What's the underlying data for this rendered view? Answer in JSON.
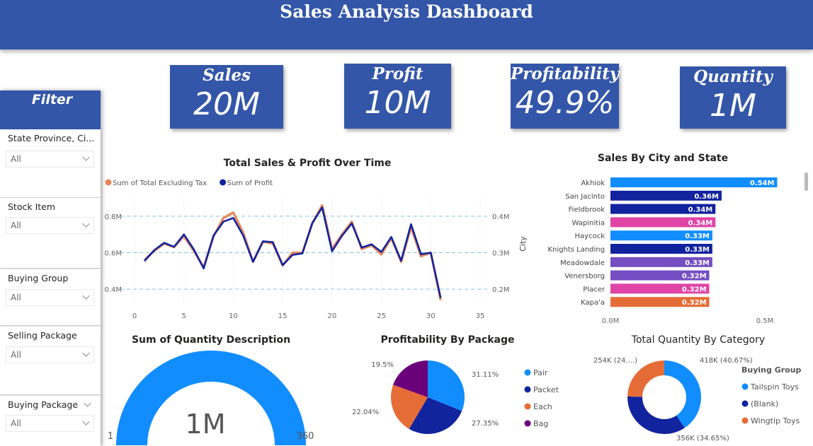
{
  "header": {
    "title": "Sales Analysis Dashboard"
  },
  "kpis": [
    {
      "title": "Sales",
      "value": "20M"
    },
    {
      "title": "Profit",
      "value": "10M"
    },
    {
      "title": "Profitability",
      "value": "49.9%"
    },
    {
      "title": "Quantity",
      "value": "1M"
    }
  ],
  "filter": {
    "title": "Filter",
    "slicers": [
      {
        "label": "State Province, Ci...",
        "value": "All"
      },
      {
        "label": "Stock Item",
        "value": "All"
      },
      {
        "label": "Buying Group",
        "value": "All"
      },
      {
        "label": "Selling Package",
        "value": "All"
      },
      {
        "label": "Buying Package",
        "value": "All"
      }
    ]
  },
  "colors": {
    "brand": "#3356a8",
    "light_blue": "#118dff",
    "dark_blue": "#12239e",
    "orange": "#e66c37",
    "purple": "#6b007b",
    "pink": "#e044a7",
    "violet": "#744ec2"
  },
  "chart_data": [
    {
      "type": "line",
      "title": "Total Sales & Profit Over Time",
      "legend_position": "top-left",
      "x": [
        1,
        2,
        3,
        4,
        5,
        6,
        7,
        8,
        9,
        10,
        11,
        12,
        13,
        14,
        15,
        16,
        17,
        18,
        19,
        20,
        21,
        22,
        23,
        24,
        25,
        26,
        27,
        28,
        29,
        30,
        31
      ],
      "series": [
        {
          "name": "Sum of Total Excluding Tax",
          "axis": "left",
          "color": "#e6875a",
          "values": [
            0.56,
            0.61,
            0.65,
            0.63,
            0.69,
            0.61,
            0.52,
            0.69,
            0.79,
            0.82,
            0.71,
            0.55,
            0.66,
            0.65,
            0.53,
            0.6,
            0.6,
            0.76,
            0.86,
            0.62,
            0.7,
            0.77,
            0.62,
            0.64,
            0.59,
            0.68,
            0.55,
            0.74,
            0.58,
            0.6,
            0.34
          ]
        },
        {
          "name": "Sum of Profit",
          "axis": "right",
          "color": "#12239e",
          "values": [
            0.277,
            0.307,
            0.327,
            0.316,
            0.35,
            0.309,
            0.257,
            0.347,
            0.385,
            0.395,
            0.347,
            0.275,
            0.331,
            0.329,
            0.266,
            0.294,
            0.298,
            0.381,
            0.424,
            0.304,
            0.346,
            0.38,
            0.314,
            0.323,
            0.302,
            0.343,
            0.278,
            0.378,
            0.296,
            0.3,
            0.176
          ]
        }
      ],
      "xlim": [
        0,
        35
      ],
      "xticks": [
        "0",
        "5",
        "10",
        "15",
        "20",
        "25",
        "30",
        "35"
      ],
      "ylim_left": [
        0.3,
        0.9
      ],
      "yticks_left": [
        "0.4M",
        "0.6M",
        "0.8M"
      ],
      "ylim_right": [
        0.15,
        0.45
      ],
      "yticks_right": [
        "0.2M",
        "0.3M",
        "0.4M"
      ],
      "grid": "horizontal dashed"
    },
    {
      "type": "bar",
      "orientation": "horizontal",
      "title": "Sales By City and State",
      "ylabel": "City",
      "xticks": [
        "0.0M",
        "0.5M"
      ],
      "xlim": [
        0,
        0.55
      ],
      "categories": [
        "Akhiok",
        "San Jacinto",
        "Fieldbrook",
        "Wapinitia",
        "Haycock",
        "Knights Landing",
        "Meadowdale",
        "Venersborg",
        "Placer",
        "Kapa'a"
      ],
      "values": [
        0.54,
        0.36,
        0.34,
        0.34,
        0.33,
        0.33,
        0.33,
        0.32,
        0.32,
        0.32
      ],
      "labels": [
        "0.54M",
        "0.36M",
        "0.34M",
        "0.34M",
        "0.33M",
        "0.33M",
        "0.33M",
        "0.32M",
        "0.32M",
        "0.32M"
      ],
      "bar_colors": [
        "#118dff",
        "#12239e",
        "#12239e",
        "#e044a7",
        "#118dff",
        "#12239e",
        "#744ec2",
        "#744ec2",
        "#e044a7",
        "#e66c37"
      ]
    },
    {
      "type": "gauge",
      "title": "Sum of Quantity Description",
      "value_label": "1M",
      "min_label": "1",
      "max_label": "360",
      "fill": 1.0,
      "color": "#118dff"
    },
    {
      "type": "pie",
      "title": "Profitability By Package",
      "categories": [
        "Pair",
        "Packet",
        "Each",
        "Bag"
      ],
      "values": [
        31.11,
        27.35,
        22.04,
        19.5
      ],
      "labels": [
        "31.11%",
        "27.35%",
        "22.04%",
        "19.5%"
      ],
      "colors": [
        "#118dff",
        "#12239e",
        "#e66c37",
        "#6b007b"
      ],
      "legend_position": "right"
    },
    {
      "type": "donut",
      "title": "Total Quantity By Category",
      "legend_title": "Buying Group",
      "categories": [
        "Tailspin Toys",
        "(Blank)",
        "Wingtip Toys"
      ],
      "values": [
        40.67,
        34.65,
        24.68
      ],
      "labels": [
        "418K (40.67%)",
        "356K (34.65%)",
        "254K (24....)"
      ],
      "colors": [
        "#118dff",
        "#12239e",
        "#e66c37"
      ],
      "legend_position": "right"
    }
  ]
}
